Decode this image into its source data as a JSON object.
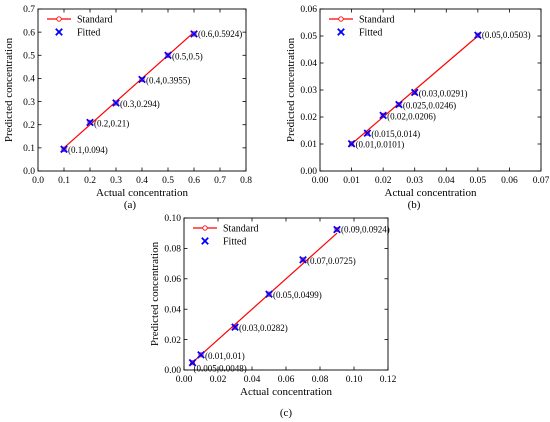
{
  "panels": [
    {
      "panel_label": "(a)",
      "chart_data": {
        "type": "line",
        "xlabel": "Actual concentration",
        "ylabel": "Predicted concentration",
        "xlim": [
          0.0,
          0.8
        ],
        "ylim": [
          0.0,
          0.7
        ],
        "x_ticks": [
          "0.0",
          "0.1",
          "0.2",
          "0.3",
          "0.4",
          "0.5",
          "0.6",
          "0.7",
          "0.8"
        ],
        "y_ticks": [
          "0.0",
          "0.1",
          "0.2",
          "0.3",
          "0.4",
          "0.5",
          "0.6",
          "0.7"
        ],
        "legend": {
          "position": "top-left",
          "entries": [
            "Standard",
            "Fitted"
          ]
        },
        "series": [
          {
            "name": "Standard",
            "style": "line",
            "color": "#ff0000",
            "x": [
              0.1,
              0.6
            ],
            "y": [
              0.1,
              0.6
            ]
          },
          {
            "name": "Fitted",
            "style": "scatter",
            "marker": "x",
            "color": "#0000ff",
            "x": [
              0.1,
              0.2,
              0.3,
              0.4,
              0.5,
              0.6
            ],
            "y": [
              0.094,
              0.21,
              0.294,
              0.3955,
              0.5,
              0.5924
            ],
            "labels": [
              "(0.1,0.094)",
              "(0.2,0.21)",
              "(0.3,0.294)",
              "(0.4,0.3955)",
              "(0.5,0.5)",
              "(0.6,0.5924)"
            ]
          }
        ]
      }
    },
    {
      "panel_label": "(b)",
      "chart_data": {
        "type": "line",
        "xlabel": "Actual concentration",
        "ylabel": "Predicted concentration",
        "xlim": [
          0.0,
          0.07
        ],
        "ylim": [
          0.0,
          0.06
        ],
        "x_ticks": [
          "0.00",
          "0.01",
          "0.02",
          "0.03",
          "0.04",
          "0.05",
          "0.06",
          "0.07"
        ],
        "y_ticks": [
          "0.00",
          "0.01",
          "0.02",
          "0.03",
          "0.04",
          "0.05",
          "0.06"
        ],
        "legend": {
          "position": "top-left",
          "entries": [
            "Standard",
            "Fitted"
          ]
        },
        "series": [
          {
            "name": "Standard",
            "style": "line",
            "color": "#ff0000",
            "x": [
              0.01,
              0.05
            ],
            "y": [
              0.01,
              0.05
            ]
          },
          {
            "name": "Fitted",
            "style": "scatter",
            "marker": "x",
            "color": "#0000ff",
            "x": [
              0.01,
              0.015,
              0.02,
              0.025,
              0.03,
              0.05
            ],
            "y": [
              0.0101,
              0.014,
              0.0206,
              0.0246,
              0.0291,
              0.0503
            ],
            "labels": [
              "(0.01,0.0101)",
              "(0.015,0.014)",
              "(0.02,0.0206)",
              "(0.025,0.0246)",
              "(0.03,0.0291)",
              "(0.05,0.0503)"
            ]
          }
        ]
      }
    },
    {
      "panel_label": "(c)",
      "chart_data": {
        "type": "line",
        "xlabel": "Actual concentration",
        "ylabel": "Predicted concentration",
        "xlim": [
          0.0,
          0.12
        ],
        "ylim": [
          0.0,
          0.1
        ],
        "x_ticks": [
          "0.00",
          "0.02",
          "0.04",
          "0.06",
          "0.08",
          "0.10",
          "0.12"
        ],
        "y_ticks": [
          "0.00",
          "0.02",
          "0.04",
          "0.06",
          "0.08",
          "0.10"
        ],
        "legend": {
          "position": "top-left",
          "entries": [
            "Standard",
            "Fitted"
          ]
        },
        "series": [
          {
            "name": "Standard",
            "style": "line",
            "color": "#ff0000",
            "x": [
              0.005,
              0.09
            ],
            "y": [
              0.005,
              0.09
            ]
          },
          {
            "name": "Fitted",
            "style": "scatter",
            "marker": "x",
            "color": "#0000ff",
            "x": [
              0.005,
              0.01,
              0.03,
              0.05,
              0.07,
              0.09
            ],
            "y": [
              0.0048,
              0.01,
              0.0282,
              0.0499,
              0.0725,
              0.0924
            ],
            "labels": [
              "(0.005,0.0048)",
              "(0.01,0.01)",
              "(0.03,0.0282)",
              "(0.05,0.0499)",
              "(0.07,0.0725)",
              "(0.09,0.0924)"
            ]
          }
        ]
      }
    }
  ]
}
